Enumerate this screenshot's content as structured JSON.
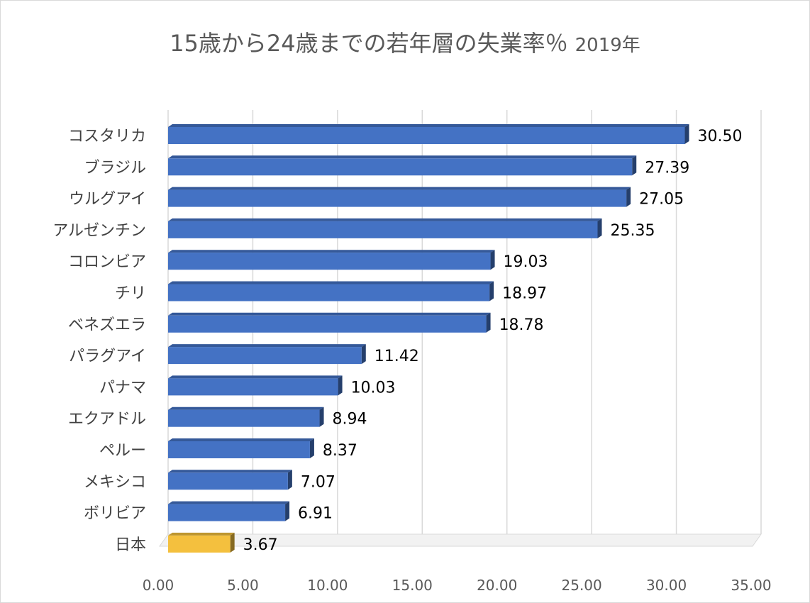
{
  "chart_data": {
    "type": "bar",
    "orientation": "horizontal",
    "title": "15歳から24歳までの若年層の失業率％",
    "subtitle": "2019年",
    "xlabel": "",
    "ylabel": "",
    "xlim": [
      0,
      35
    ],
    "grid": true,
    "legend": "none",
    "x_ticks": [
      "0.00",
      "5.00",
      "10.00",
      "15.00",
      "20.00",
      "25.00",
      "30.00",
      "35.00"
    ],
    "categories": [
      "コスタリカ",
      "ブラジル",
      "ウルグアイ",
      "アルゼンチン",
      "コロンビア",
      "チリ",
      "ベネズエラ",
      "パラグアイ",
      "パナマ",
      "エクアドル",
      "ペルー",
      "メキシコ",
      "ボリビア",
      "日本"
    ],
    "values": [
      30.5,
      27.39,
      27.05,
      25.35,
      19.03,
      18.97,
      18.78,
      11.42,
      10.03,
      8.94,
      8.37,
      7.07,
      6.91,
      3.67
    ],
    "value_labels": [
      "30.50",
      "27.39",
      "27.05",
      "25.35",
      "19.03",
      "18.97",
      "18.78",
      "11.42",
      "10.03",
      "8.94",
      "8.37",
      "7.07",
      "6.91",
      "3.67"
    ],
    "colors": {
      "default_bar": "#4472c4",
      "highlight_bar": "#f4c03e",
      "highlight_category": "日本"
    }
  }
}
